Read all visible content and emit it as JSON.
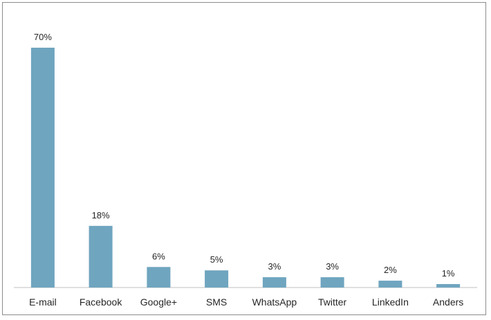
{
  "chart_data": {
    "type": "bar",
    "categories": [
      "E-mail",
      "Facebook",
      "Google+",
      "SMS",
      "WhatsApp",
      "Twitter",
      "LinkedIn",
      "Anders"
    ],
    "values": [
      70,
      18,
      6,
      5,
      3,
      3,
      2,
      1
    ],
    "value_labels": [
      "70%",
      "18%",
      "6%",
      "5%",
      "3%",
      "3%",
      "2%",
      "1%"
    ],
    "title": "",
    "xlabel": "",
    "ylabel": "",
    "ylim": [
      0,
      70
    ],
    "grid": false,
    "legend": "none",
    "bar_color": "#6fa5bf",
    "axis_color": "#bfbfbf"
  }
}
